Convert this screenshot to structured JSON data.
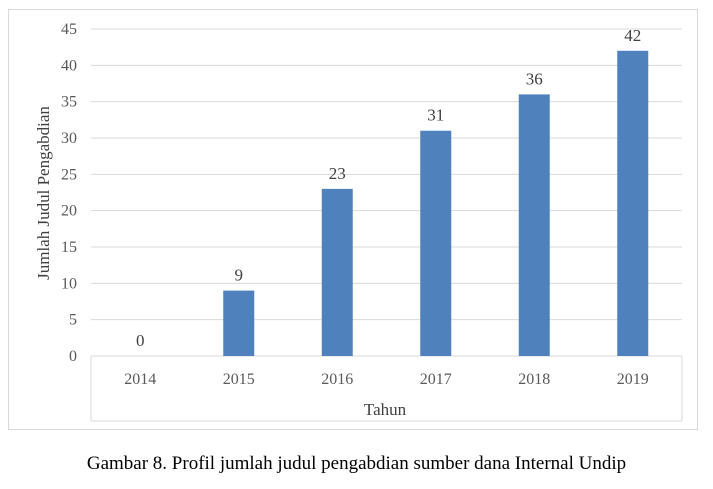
{
  "chart_data": {
    "type": "bar",
    "categories": [
      "2014",
      "2015",
      "2016",
      "2017",
      "2018",
      "2019"
    ],
    "series": [
      {
        "values": [
          0,
          9,
          23,
          31,
          36,
          42
        ]
      }
    ],
    "xlabel": "Tahun",
    "ylabel": "Jumlah Judul Pengabdian",
    "ylim": [
      0,
      45
    ],
    "yticks": [
      0,
      5,
      10,
      15,
      20,
      25,
      30,
      35,
      40,
      45
    ],
    "grid": true,
    "data_labels": true,
    "bar_color": "#4f81bd",
    "grid_color": "#d9d9d9"
  },
  "caption": "Gambar 8. Profil jumlah judul pengabdian sumber dana Internal Undip"
}
